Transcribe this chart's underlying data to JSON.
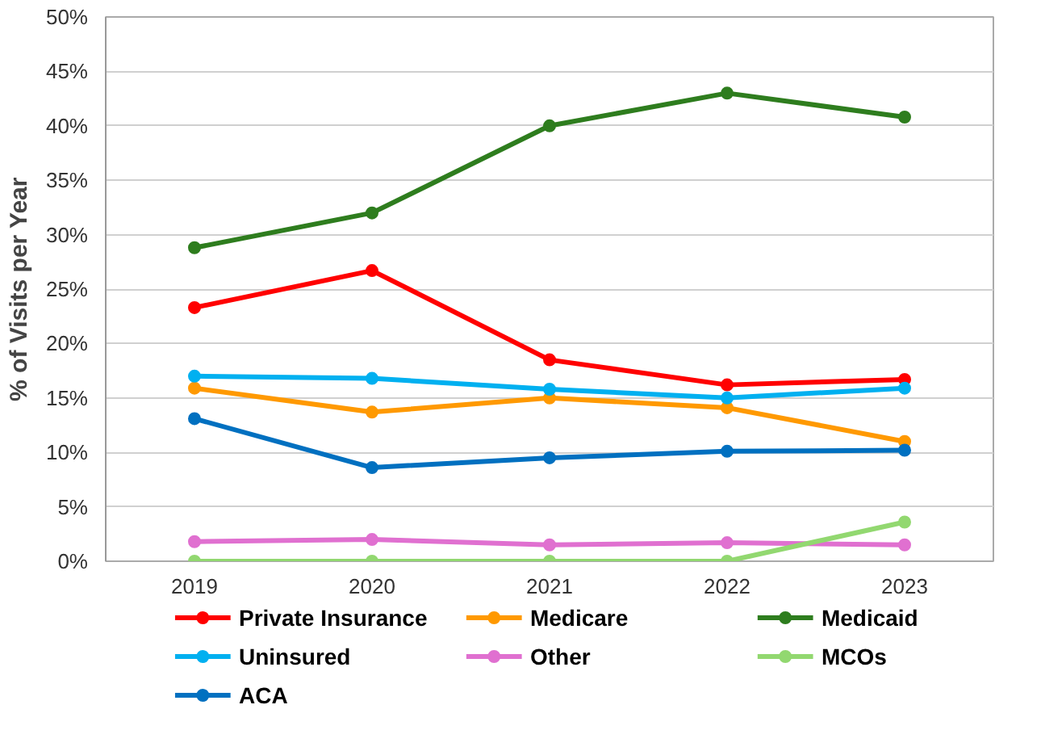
{
  "chart_data": {
    "type": "line",
    "ylabel": "% of Visits per Year",
    "categories": [
      "2019",
      "2020",
      "2021",
      "2022",
      "2023"
    ],
    "series": [
      {
        "name": "Private Insurance",
        "color": "#ff0000",
        "values": [
          23.3,
          26.7,
          18.5,
          16.2,
          16.7
        ]
      },
      {
        "name": "Medicare",
        "color": "#ff9900",
        "values": [
          15.9,
          13.7,
          15.0,
          14.1,
          11.0
        ]
      },
      {
        "name": "Medicaid",
        "color": "#2e7d1e",
        "values": [
          28.8,
          32.0,
          40.0,
          43.0,
          40.8
        ]
      },
      {
        "name": "Uninsured",
        "color": "#00b0f0",
        "values": [
          17.0,
          16.8,
          15.8,
          15.0,
          15.9
        ]
      },
      {
        "name": "Other",
        "color": "#e070d0",
        "values": [
          1.8,
          2.0,
          1.5,
          1.7,
          1.5
        ]
      },
      {
        "name": "MCOs",
        "color": "#92d870",
        "values": [
          0,
          0,
          0,
          0,
          3.6
        ]
      },
      {
        "name": "ACA",
        "color": "#0070c0",
        "values": [
          13.1,
          8.6,
          9.5,
          10.1,
          10.2
        ]
      }
    ],
    "ylim": [
      0,
      50
    ],
    "yticks": [
      {
        "value": 0,
        "label": "0%"
      },
      {
        "value": 5,
        "label": "5%"
      },
      {
        "value": 10,
        "label": "10%"
      },
      {
        "value": 15,
        "label": "15%"
      },
      {
        "value": 20,
        "label": "20%"
      },
      {
        "value": 25,
        "label": "25%"
      },
      {
        "value": 30,
        "label": "30%"
      },
      {
        "value": 35,
        "label": "35%"
      },
      {
        "value": 40,
        "label": "40%"
      },
      {
        "value": 45,
        "label": "45%"
      },
      {
        "value": 50,
        "label": "50%"
      }
    ],
    "grid": "y",
    "legend": "bottom",
    "marker": "circle",
    "line_style": "solid"
  }
}
